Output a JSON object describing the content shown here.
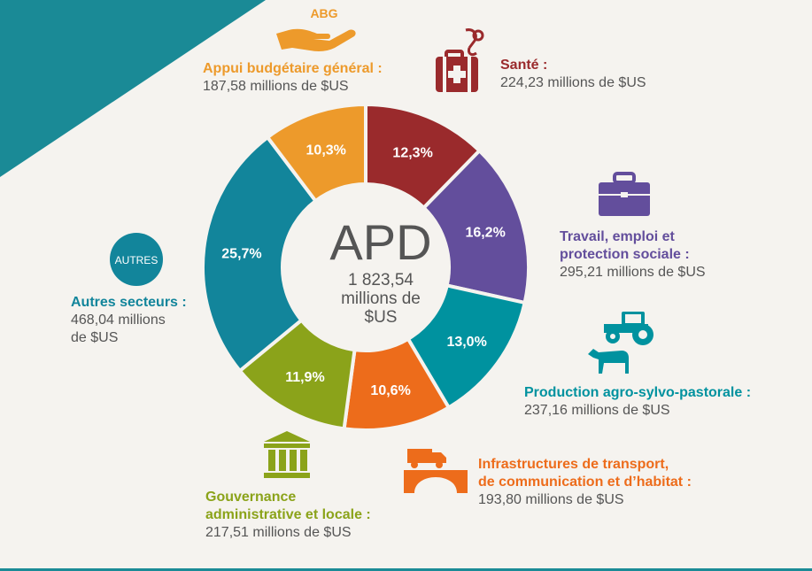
{
  "center": {
    "title": "APD",
    "value_line1": "1 823,54",
    "value_line2": "millions de",
    "value_line3": "$US"
  },
  "chart_data": {
    "type": "pie",
    "title": "",
    "slices": [
      {
        "key": "sante",
        "label": "Santé :",
        "value_text": "224,23 millions de $US",
        "value": 224.23,
        "percent_label": "12,3%",
        "color": "#9a2a2c"
      },
      {
        "key": "travail",
        "label": "Travail, emploi et protection sociale :",
        "value_text": "295,21 millions de $US",
        "value": 295.21,
        "percent_label": "16,2%",
        "color": "#634e9c"
      },
      {
        "key": "agro",
        "label": "Production agro-sylvo-pastorale :",
        "value_text": "237,16 millions de $US",
        "value": 237.16,
        "percent_label": "13,0%",
        "color": "#00929f"
      },
      {
        "key": "infra",
        "label": "Infrastructures de transport, de communication et d’habitat :",
        "value_text": "193,80 millions de $US",
        "value": 193.8,
        "percent_label": "10,6%",
        "color": "#ed6c1b"
      },
      {
        "key": "gouv",
        "label": "Gouvernance administrative et locale :",
        "value_text": "217,51 millions de $US",
        "value": 217.51,
        "percent_label": "11,9%",
        "color": "#8ba31a"
      },
      {
        "key": "autres",
        "label": "Autres secteurs :",
        "value_text": "468,04 millions de $US",
        "value": 468.04,
        "percent_label": "25,7%",
        "color": "#12859b"
      },
      {
        "key": "abg",
        "label": "Appui budgétaire général :",
        "value_text": "187,58 millions de $US",
        "value": 187.58,
        "percent_label": "10,3%",
        "color": "#ed9a2b"
      }
    ]
  },
  "labels": {
    "abg": {
      "title": "Appui budgétaire général :",
      "value": "187,58 millions de $US",
      "icon_text": "ABG"
    },
    "sante": {
      "title": "Santé :",
      "value": "224,23 millions de $US"
    },
    "travail": {
      "title_l1": "Travail, emploi et",
      "title_l2": "protection sociale :",
      "value": "295,21 millions de $US"
    },
    "agro": {
      "title": "Production agro-sylvo-pastorale :",
      "value": "237,16 millions de $US"
    },
    "infra": {
      "title_l1": "Infrastructures de transport,",
      "title_l2": "de communication et d’habitat :",
      "value": "193,80 millions de $US"
    },
    "gouv": {
      "title_l1": "Gouvernance",
      "title_l2": "administrative et locale :",
      "value": "217,51 millions de $US"
    },
    "autres": {
      "title": "Autres secteurs :",
      "value_l1": "468,04 millions",
      "value_l2": "de $US",
      "icon_text": "AUTRES"
    }
  },
  "colors": {
    "abg": "#ed9a2b",
    "sante": "#9a2a2c",
    "travail": "#634e9c",
    "agro": "#00929f",
    "infra": "#ed6c1b",
    "gouv": "#8ba31a",
    "autres": "#12859b",
    "corner": "#1a8a96"
  },
  "icons": {
    "abg": "hand-icon",
    "sante": "medical-kit-icon",
    "travail": "briefcase-icon",
    "agro": "tractor-cow-icon",
    "infra": "truck-bridge-icon",
    "gouv": "institution-icon",
    "autres": "autres-badge-icon"
  }
}
